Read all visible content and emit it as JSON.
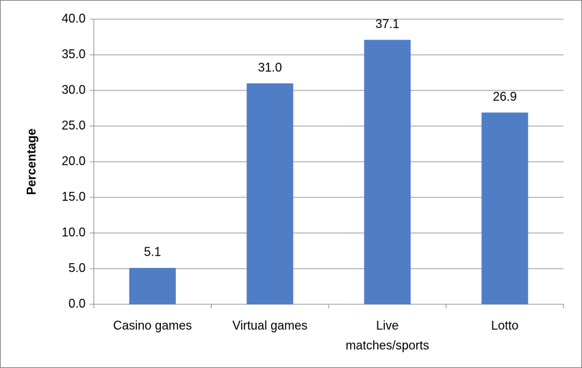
{
  "chart_data": {
    "type": "bar",
    "y_axis_label": "Percentage",
    "categories": [
      "Casino games",
      "Virtual games",
      "Live matches/sports",
      "Lotto"
    ],
    "values": [
      5.1,
      31.0,
      37.1,
      26.9
    ],
    "value_labels": [
      "5.1",
      "31.0",
      "37.1",
      "26.9"
    ],
    "color": "#4f7ec6",
    "ylim": [
      0,
      40
    ],
    "yticks": [
      {
        "value": 0,
        "label": "0.0"
      },
      {
        "value": 5,
        "label": "5.0"
      },
      {
        "value": 10,
        "label": "10.0"
      },
      {
        "value": 15,
        "label": "15.0"
      },
      {
        "value": 20,
        "label": "20.0"
      },
      {
        "value": 25,
        "label": "25.0"
      },
      {
        "value": 30,
        "label": "30.0"
      },
      {
        "value": 35,
        "label": "35.0"
      },
      {
        "value": 40,
        "label": "40.0"
      }
    ],
    "grid": true
  }
}
